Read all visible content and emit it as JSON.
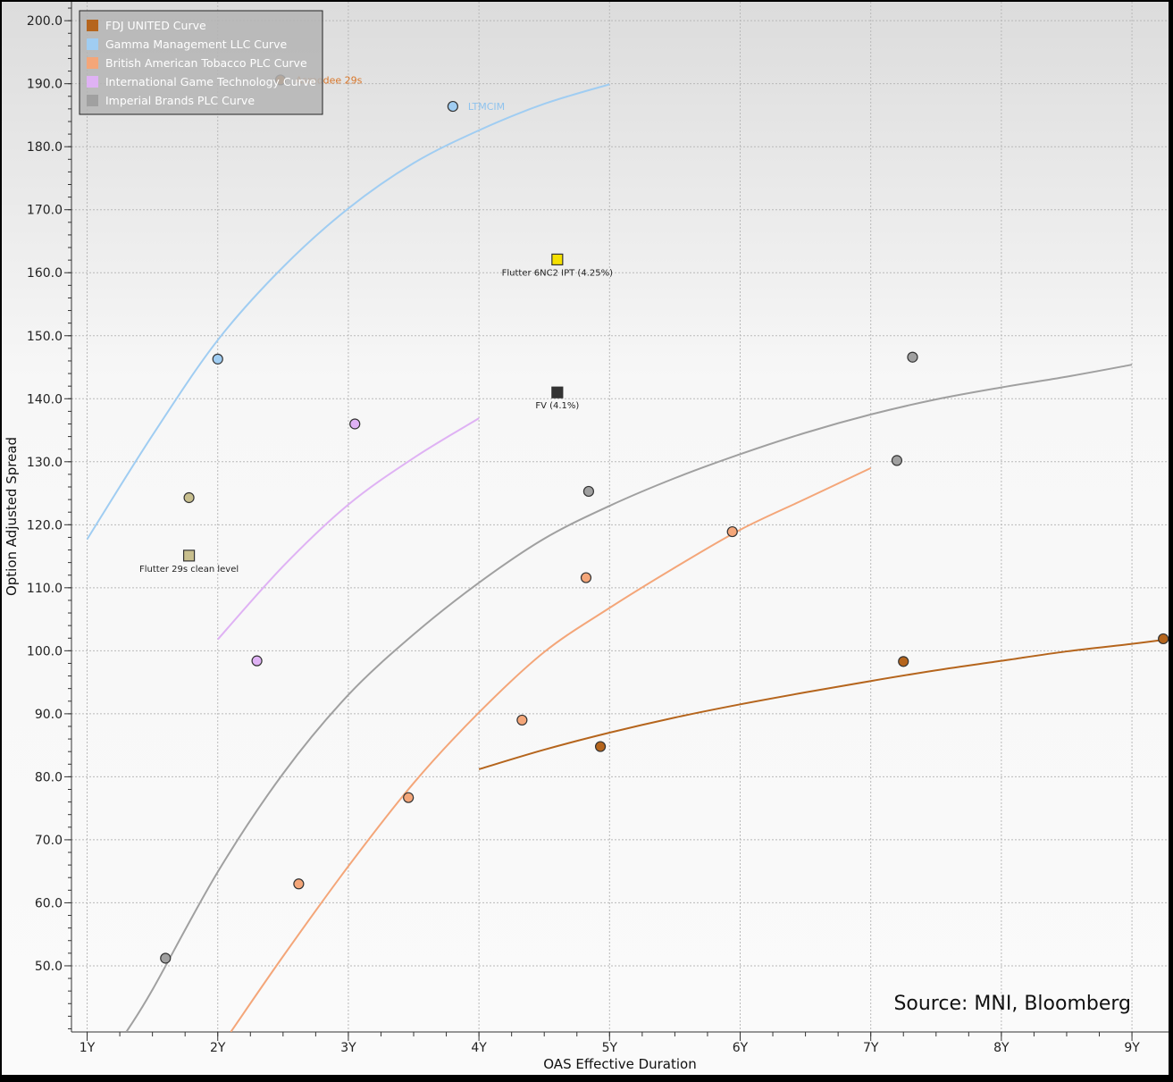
{
  "chart_data": {
    "type": "scatter",
    "xlabel": "OAS Effective Duration",
    "ylabel": "Option Adjusted Spread",
    "xlim": [
      0.88,
      9.28
    ],
    "ylim": [
      39.5,
      203.0
    ],
    "x_ticks": [
      {
        "value": 1,
        "label": "1Y"
      },
      {
        "value": 2,
        "label": "2Y"
      },
      {
        "value": 3,
        "label": "3Y"
      },
      {
        "value": 4,
        "label": "4Y"
      },
      {
        "value": 5,
        "label": "5Y"
      },
      {
        "value": 6,
        "label": "6Y"
      },
      {
        "value": 7,
        "label": "7Y"
      },
      {
        "value": 8,
        "label": "8Y"
      },
      {
        "value": 9,
        "label": "9Y"
      }
    ],
    "y_ticks": [
      {
        "value": 50,
        "label": "50.0"
      },
      {
        "value": 60,
        "label": "60.0"
      },
      {
        "value": 70,
        "label": "70.0"
      },
      {
        "value": 80,
        "label": "80.0"
      },
      {
        "value": 90,
        "label": "90.0"
      },
      {
        "value": 100,
        "label": "100.0"
      },
      {
        "value": 110,
        "label": "110.0"
      },
      {
        "value": 120,
        "label": "120.0"
      },
      {
        "value": 130,
        "label": "130.0"
      },
      {
        "value": 140,
        "label": "140.0"
      },
      {
        "value": 150,
        "label": "150.0"
      },
      {
        "value": 160,
        "label": "160.0"
      },
      {
        "value": 170,
        "label": "170.0"
      },
      {
        "value": 180,
        "label": "180.0"
      },
      {
        "value": 190,
        "label": "190.0"
      },
      {
        "value": 200,
        "label": "200.0"
      }
    ],
    "grid": true,
    "legend_position": "top-left",
    "source_note": "Source: MNI, Bloomberg",
    "series": [
      {
        "name": "FDJ UNITED Curve",
        "color": "#b5651d",
        "curve": [
          [
            4.0,
            81.2
          ],
          [
            4.5,
            84.3
          ],
          [
            5.0,
            87.0
          ],
          [
            5.5,
            89.4
          ],
          [
            6.0,
            91.5
          ],
          [
            6.5,
            93.4
          ],
          [
            7.0,
            95.2
          ],
          [
            7.5,
            96.9
          ],
          [
            8.0,
            98.4
          ],
          [
            8.5,
            99.9
          ],
          [
            9.0,
            101.1
          ],
          [
            9.3,
            101.9
          ]
        ],
        "points": [
          [
            4.93,
            84.8
          ],
          [
            7.25,
            98.3
          ],
          [
            9.24,
            101.9
          ],
          [
            2.48,
            190.6
          ]
        ]
      },
      {
        "name": "Gamma Management LLC Curve",
        "color": "#a0cdf2",
        "curve": [
          [
            1.0,
            117.7
          ],
          [
            1.5,
            134.2
          ],
          [
            2.0,
            149.3
          ],
          [
            2.5,
            160.9
          ],
          [
            3.0,
            170.2
          ],
          [
            3.5,
            177.4
          ],
          [
            4.0,
            182.6
          ],
          [
            4.5,
            186.8
          ],
          [
            5.0,
            189.9
          ]
        ],
        "points": [
          [
            2.0,
            146.3
          ],
          [
            3.8,
            186.4
          ]
        ]
      },
      {
        "name": "British American Tobacco PLC Curve",
        "color": "#f4a679",
        "curve": [
          [
            2.1,
            39.5
          ],
          [
            2.5,
            51.5
          ],
          [
            3.0,
            65.8
          ],
          [
            3.5,
            79.0
          ],
          [
            4.0,
            90.2
          ],
          [
            4.5,
            99.8
          ],
          [
            5.0,
            106.8
          ],
          [
            5.5,
            113.2
          ],
          [
            6.0,
            119.2
          ],
          [
            6.5,
            124.1
          ],
          [
            7.0,
            129.0
          ]
        ],
        "points": [
          [
            2.62,
            63.0
          ],
          [
            3.46,
            76.7
          ],
          [
            4.33,
            89.0
          ],
          [
            4.82,
            111.6
          ],
          [
            5.94,
            118.9
          ]
        ]
      },
      {
        "name": "International Game Technology Curve",
        "color": "#dfb2f4",
        "curve": [
          [
            2.0,
            101.8
          ],
          [
            2.5,
            113.4
          ],
          [
            3.0,
            123.2
          ],
          [
            3.5,
            130.6
          ],
          [
            4.0,
            136.9
          ]
        ],
        "points": [
          [
            2.3,
            98.4
          ],
          [
            3.05,
            136.0
          ]
        ]
      },
      {
        "name": "Imperial Brands PLC Curve",
        "color": "#a0a0a0",
        "curve": [
          [
            1.3,
            39.5
          ],
          [
            1.5,
            46.2
          ],
          [
            2.0,
            64.9
          ],
          [
            2.5,
            80.5
          ],
          [
            3.0,
            93.0
          ],
          [
            3.5,
            102.6
          ],
          [
            4.0,
            110.8
          ],
          [
            4.5,
            117.8
          ],
          [
            5.0,
            123.0
          ],
          [
            5.5,
            127.4
          ],
          [
            6.0,
            131.2
          ],
          [
            6.5,
            134.6
          ],
          [
            7.0,
            137.5
          ],
          [
            7.5,
            139.9
          ],
          [
            8.0,
            141.8
          ],
          [
            8.5,
            143.5
          ],
          [
            9.0,
            145.4
          ]
        ],
        "points": [
          [
            1.6,
            51.2
          ],
          [
            4.84,
            125.3
          ],
          [
            7.2,
            130.2
          ],
          [
            7.32,
            146.6
          ]
        ]
      }
    ],
    "extra_points": [
      {
        "x": 1.78,
        "y": 124.3,
        "shape": "circle",
        "color": "#c8bf8e"
      },
      {
        "x": 1.78,
        "y": 115.1,
        "shape": "square",
        "color": "#c8bf8e"
      },
      {
        "x": 4.6,
        "y": 162.1,
        "shape": "square",
        "color": "#f5e000"
      },
      {
        "x": 4.6,
        "y": 141.0,
        "shape": "square",
        "color": "#333333"
      }
    ],
    "annotations": [
      {
        "text": "Asmodee 29s",
        "x": 2.48,
        "y": 190.6,
        "color": "#d9772a",
        "anchor": "right"
      },
      {
        "text": "LTMCIM",
        "x": 3.8,
        "y": 186.4,
        "color": "#8fc3ee",
        "anchor": "right"
      },
      {
        "text": "Flutter 6NC2 IPT (4.25%)",
        "x": 4.6,
        "y": 162.1,
        "color": "#222222",
        "anchor": "below"
      },
      {
        "text": "FV (4.1%)",
        "x": 4.6,
        "y": 141.0,
        "color": "#222222",
        "anchor": "below"
      },
      {
        "text": "Flutter 29s clean level",
        "x": 1.78,
        "y": 115.1,
        "color": "#222222",
        "anchor": "below"
      }
    ]
  }
}
